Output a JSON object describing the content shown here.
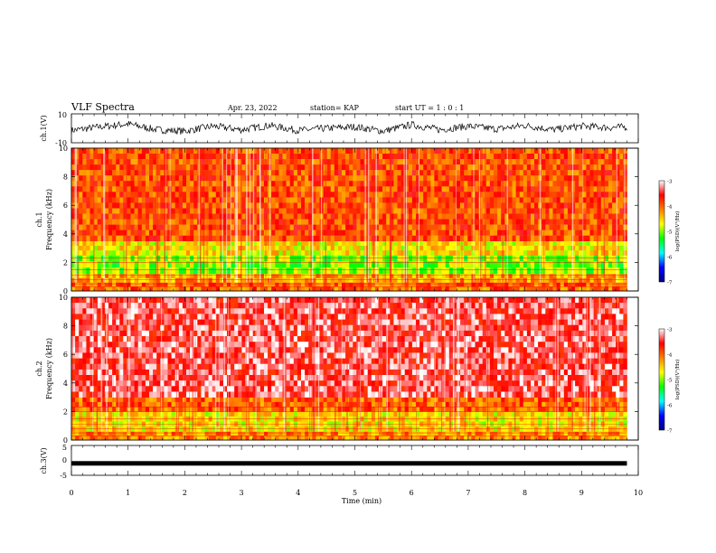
{
  "header": {
    "title": "VLF Spectra",
    "date": "Apr. 23, 2022",
    "station": "station= KAP",
    "start": "start  UT =   1 : 0  : 1"
  },
  "colors": {
    "ramp": [
      "#000080",
      "#0000ff",
      "#00ffff",
      "#00ff00",
      "#ffff00",
      "#ff8000",
      "#ff0000",
      "#ffffff"
    ],
    "waveform": "#000000"
  },
  "chart_data": [
    {
      "type": "line",
      "panel": "ch1-waveform",
      "ylabel": "ch.1(V)",
      "ylim": [
        -10,
        10
      ],
      "yticks": [
        "10",
        "-10"
      ],
      "xlim": [
        0,
        10
      ],
      "series": [
        {
          "values_description_only": false,
          "x": [
            0,
            0.5,
            1,
            1.5,
            2,
            2.5,
            3,
            3.5,
            4,
            4.5,
            5,
            5.5,
            6,
            6.5,
            7,
            7.5,
            8,
            8.5,
            9,
            9.5,
            9.8
          ],
          "values": [
            -1.5,
            1,
            3,
            -1,
            -2,
            1.5,
            -1,
            2,
            -1.5,
            0,
            1,
            -2,
            2.5,
            -1,
            1.5,
            -0.5,
            2,
            -1,
            1.5,
            0.5,
            1
          ]
        }
      ]
    },
    {
      "type": "heatmap",
      "panel": "ch1-spectrogram",
      "ylabel": "ch.1\nFrequency (kHz)",
      "ylabel_channel": "ch.1",
      "ylabel_axis": "Frequency (kHz)",
      "ylim": [
        0,
        10
      ],
      "yticks": [
        "0",
        "2",
        "4",
        "6",
        "8",
        "10"
      ],
      "xlim": [
        0,
        10
      ],
      "colorbar": {
        "label": "log(PSD)(V²/Hz)",
        "range": [
          -7,
          -3
        ],
        "ticks": [
          "-3",
          "-4",
          "-5",
          "-6",
          "-7"
        ]
      },
      "bands": [
        {
          "freq_range": [
            0,
            0.6
          ],
          "level": -4
        },
        {
          "freq_range": [
            0.6,
            1.2
          ],
          "level": -4.3
        },
        {
          "freq_range": [
            1.2,
            2.5
          ],
          "level": -5
        },
        {
          "freq_range": [
            2.5,
            3.5
          ],
          "level": -4.6
        },
        {
          "freq_range": [
            3.5,
            10
          ],
          "level": -3.9
        }
      ]
    },
    {
      "type": "heatmap",
      "panel": "ch2-spectrogram",
      "ylabel": "ch.2\nFrequency (kHz)",
      "ylabel_channel": "ch.2",
      "ylabel_axis": "Frequency (kHz)",
      "ylim": [
        0,
        10
      ],
      "yticks": [
        "0",
        "2",
        "4",
        "6",
        "8",
        "10"
      ],
      "xlim": [
        0,
        10
      ],
      "colorbar": {
        "label": "log(PSD)(V²/Hz)",
        "range": [
          -7,
          -3
        ],
        "ticks": [
          "-3",
          "-4",
          "-5",
          "-6",
          "-7"
        ]
      },
      "bands": [
        {
          "freq_range": [
            0,
            0.6
          ],
          "level": -4.2
        },
        {
          "freq_range": [
            0.6,
            2.0
          ],
          "level": -4.6
        },
        {
          "freq_range": [
            2.0,
            3.0
          ],
          "level": -4.0
        },
        {
          "freq_range": [
            3.0,
            10
          ],
          "level": -3.4
        }
      ]
    },
    {
      "type": "line",
      "panel": "ch3-waveform",
      "ylabel": "ch.3(V)",
      "ylim": [
        -5,
        5
      ],
      "yticks": [
        "5",
        "0",
        "-5"
      ],
      "xlim": [
        0,
        10
      ],
      "xlabel": "Time  (min)",
      "xticks": [
        "0",
        "1",
        "2",
        "3",
        "4",
        "5",
        "6",
        "7",
        "8",
        "9",
        "10"
      ],
      "series": [
        {
          "x": [
            0,
            9.8
          ],
          "values": [
            -1,
            -1
          ]
        }
      ]
    }
  ]
}
